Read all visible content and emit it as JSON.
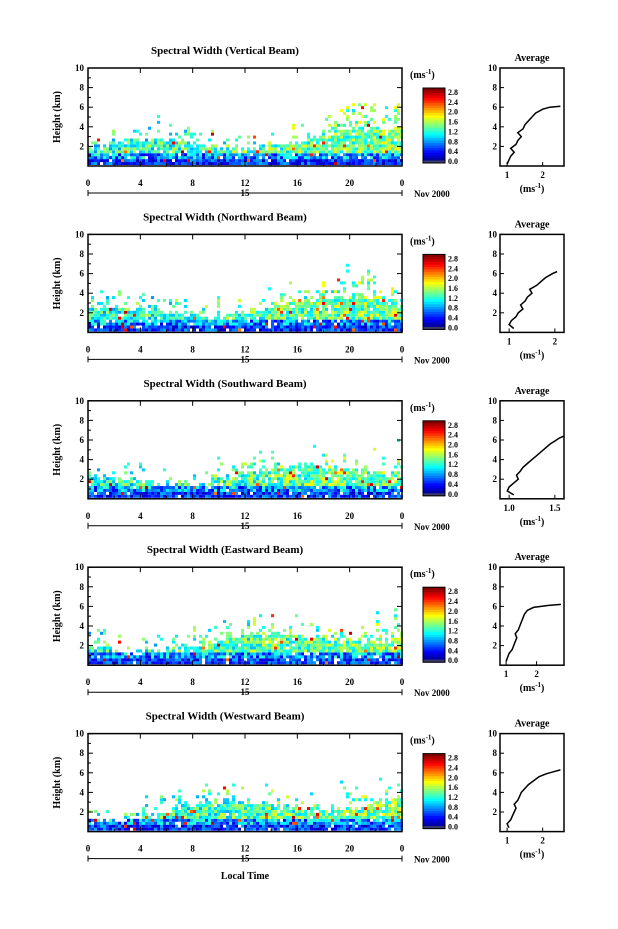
{
  "footer": {
    "xlabel": "Local Time"
  },
  "shared": {
    "date_label": "Nov 2000",
    "day_label": "15",
    "ylabel": "Height (km)",
    "colorbar_units_main": "(ms",
    "colorbar_units_exp": "-1",
    "colorbar_units_close": ")",
    "avg_title": "Average",
    "avg_xlabel_main": "(ms",
    "avg_xlabel_exp": "-1",
    "avg_xlabel_close": ")"
  },
  "chart_data": [
    {
      "type": "heatmap",
      "title": "Spectral Width (Vertical Beam)",
      "x": [
        0,
        4,
        8,
        12,
        16,
        20,
        0
      ],
      "xlim": [
        0,
        24
      ],
      "ylim": [
        0,
        10
      ],
      "yticks": [
        2,
        4,
        6,
        8,
        10
      ],
      "colorbar": {
        "ticks": [
          "2.8",
          "2.4",
          "2.0",
          "1.6",
          "1.2",
          "0.8",
          "0.4",
          "0.0"
        ]
      },
      "average": {
        "title": "Average",
        "xticks": [
          "1",
          "2"
        ],
        "xlim": [
          0.8,
          2.6
        ],
        "ylim": [
          0,
          10
        ],
        "profile": [
          [
            1.0,
            0.2
          ],
          [
            1.05,
            0.6
          ],
          [
            1.1,
            1.0
          ],
          [
            1.2,
            1.4
          ],
          [
            1.1,
            1.8
          ],
          [
            1.25,
            2.2
          ],
          [
            1.3,
            2.6
          ],
          [
            1.4,
            3.0
          ],
          [
            1.3,
            3.4
          ],
          [
            1.45,
            3.8
          ],
          [
            1.5,
            4.2
          ],
          [
            1.6,
            4.6
          ],
          [
            1.7,
            5.0
          ],
          [
            1.8,
            5.4
          ],
          [
            2.0,
            5.8
          ],
          [
            2.2,
            6.0
          ],
          [
            2.5,
            6.1
          ]
        ]
      }
    },
    {
      "type": "heatmap",
      "title": "Spectral Width (Northward Beam)",
      "x": [
        0,
        4,
        8,
        12,
        16,
        20,
        0
      ],
      "xlim": [
        0,
        24
      ],
      "ylim": [
        0,
        10
      ],
      "yticks": [
        2,
        4,
        6,
        8,
        10
      ],
      "colorbar": {
        "ticks": [
          "2.8",
          "2.4",
          "2.0",
          "1.6",
          "1.2",
          "0.8",
          "0.4",
          "0.0"
        ]
      },
      "average": {
        "title": "Average",
        "xticks": [
          "1",
          "2"
        ],
        "xlim": [
          0.8,
          2.2
        ],
        "ylim": [
          0,
          10
        ],
        "profile": [
          [
            1.1,
            0.4
          ],
          [
            1.0,
            0.8
          ],
          [
            1.05,
            1.2
          ],
          [
            1.15,
            1.6
          ],
          [
            1.2,
            2.0
          ],
          [
            1.3,
            2.4
          ],
          [
            1.25,
            2.8
          ],
          [
            1.35,
            3.2
          ],
          [
            1.4,
            3.6
          ],
          [
            1.5,
            4.0
          ],
          [
            1.45,
            4.4
          ],
          [
            1.6,
            4.8
          ],
          [
            1.7,
            5.2
          ],
          [
            1.8,
            5.6
          ],
          [
            1.95,
            6.0
          ],
          [
            2.05,
            6.2
          ]
        ]
      }
    },
    {
      "type": "heatmap",
      "title": "Spectral Width (Southward Beam)",
      "x": [
        0,
        4,
        8,
        12,
        16,
        20,
        0
      ],
      "xlim": [
        0,
        24
      ],
      "ylim": [
        0,
        10
      ],
      "yticks": [
        2,
        4,
        6,
        8,
        10
      ],
      "colorbar": {
        "ticks": [
          "2.8",
          "2.4",
          "2.0",
          "1.6",
          "1.2",
          "0.8",
          "0.4",
          "0.0"
        ]
      },
      "average": {
        "title": "Average",
        "xticks": [
          "1.0",
          "1.5"
        ],
        "xlim": [
          0.9,
          1.6
        ],
        "ylim": [
          0,
          10
        ],
        "profile": [
          [
            1.05,
            0.4
          ],
          [
            0.98,
            0.8
          ],
          [
            1.0,
            1.2
          ],
          [
            1.05,
            1.6
          ],
          [
            1.1,
            2.0
          ],
          [
            1.08,
            2.4
          ],
          [
            1.12,
            2.8
          ],
          [
            1.15,
            3.2
          ],
          [
            1.2,
            3.6
          ],
          [
            1.25,
            4.0
          ],
          [
            1.3,
            4.4
          ],
          [
            1.35,
            4.8
          ],
          [
            1.4,
            5.2
          ],
          [
            1.45,
            5.6
          ],
          [
            1.5,
            5.9
          ],
          [
            1.55,
            6.2
          ],
          [
            1.6,
            6.4
          ]
        ]
      }
    },
    {
      "type": "heatmap",
      "title": "Spectral Width (Eastward Beam)",
      "x": [
        0,
        4,
        8,
        12,
        16,
        20,
        0
      ],
      "xlim": [
        0,
        24
      ],
      "ylim": [
        0,
        10
      ],
      "yticks": [
        2,
        4,
        6,
        8,
        10
      ],
      "colorbar": {
        "ticks": [
          "2.8",
          "2.4",
          "2.0",
          "1.6",
          "1.2",
          "0.8",
          "0.4",
          "0.0"
        ]
      },
      "average": {
        "title": "Average",
        "xticks": [
          "1",
          "2"
        ],
        "xlim": [
          0.8,
          2.9
        ],
        "ylim": [
          0,
          10
        ],
        "profile": [
          [
            1.0,
            0.4
          ],
          [
            1.05,
            0.8
          ],
          [
            1.1,
            1.2
          ],
          [
            1.2,
            1.6
          ],
          [
            1.25,
            2.0
          ],
          [
            1.3,
            2.4
          ],
          [
            1.35,
            2.8
          ],
          [
            1.3,
            3.2
          ],
          [
            1.4,
            3.6
          ],
          [
            1.45,
            4.0
          ],
          [
            1.5,
            4.4
          ],
          [
            1.55,
            4.8
          ],
          [
            1.6,
            5.2
          ],
          [
            1.7,
            5.6
          ],
          [
            1.9,
            5.9
          ],
          [
            2.4,
            6.1
          ],
          [
            2.8,
            6.2
          ]
        ]
      }
    },
    {
      "type": "heatmap",
      "title": "Spectral Width (Westward Beam)",
      "x": [
        0,
        4,
        8,
        12,
        16,
        20,
        0
      ],
      "xlim": [
        0,
        24
      ],
      "ylim": [
        0,
        10
      ],
      "yticks": [
        2,
        4,
        6,
        8,
        10
      ],
      "colorbar": {
        "ticks": [
          "2.8",
          "2.4",
          "2.0",
          "1.6",
          "1.2",
          "0.8",
          "0.4",
          "0.0"
        ]
      },
      "average": {
        "title": "Average",
        "xticks": [
          "1",
          "2"
        ],
        "xlim": [
          0.8,
          2.6
        ],
        "ylim": [
          0,
          10
        ],
        "profile": [
          [
            1.05,
            0.4
          ],
          [
            1.0,
            0.8
          ],
          [
            1.1,
            1.2
          ],
          [
            1.15,
            1.6
          ],
          [
            1.2,
            2.0
          ],
          [
            1.25,
            2.4
          ],
          [
            1.2,
            2.8
          ],
          [
            1.3,
            3.2
          ],
          [
            1.35,
            3.6
          ],
          [
            1.4,
            4.0
          ],
          [
            1.5,
            4.4
          ],
          [
            1.6,
            4.8
          ],
          [
            1.75,
            5.2
          ],
          [
            1.9,
            5.6
          ],
          [
            2.1,
            5.9
          ],
          [
            2.3,
            6.1
          ],
          [
            2.5,
            6.3
          ]
        ]
      }
    }
  ]
}
